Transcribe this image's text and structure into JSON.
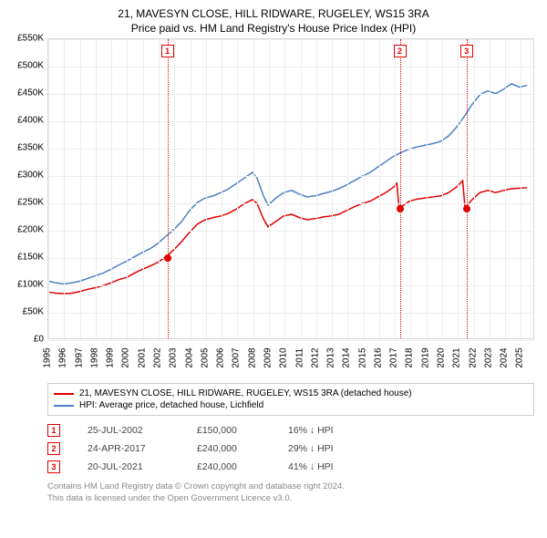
{
  "title_line1": "21, MAVESYN CLOSE, HILL RIDWARE, RUGELEY, WS15 3RA",
  "title_line2": "Price paid vs. HM Land Registry's House Price Index (HPI)",
  "chart": {
    "type": "line",
    "x_min": 1995,
    "x_max": 2025.9,
    "y_min": 0,
    "y_max": 550000,
    "y_step": 50000,
    "y_ticks": [
      "£0",
      "£50K",
      "£100K",
      "£150K",
      "£200K",
      "£250K",
      "£300K",
      "£350K",
      "£400K",
      "£450K",
      "£500K",
      "£550K"
    ],
    "x_ticks": [
      "1995",
      "1996",
      "1997",
      "1998",
      "1999",
      "2000",
      "2001",
      "2002",
      "2003",
      "2004",
      "2005",
      "2006",
      "2007",
      "2008",
      "2009",
      "2010",
      "2011",
      "2012",
      "2013",
      "2014",
      "2015",
      "2016",
      "2017",
      "2018",
      "2019",
      "2020",
      "2021",
      "2022",
      "2023",
      "2024",
      "2025"
    ],
    "grid_color": "#eeeeee",
    "border_color": "#d8d8d8",
    "background": "#ffffff",
    "series": {
      "property": {
        "color": "#e00000",
        "width": 1.5,
        "points": [
          [
            1995.0,
            85000
          ],
          [
            1995.5,
            83000
          ],
          [
            1996.0,
            82000
          ],
          [
            1996.5,
            83000
          ],
          [
            1997.0,
            86000
          ],
          [
            1997.5,
            90000
          ],
          [
            1998.0,
            93000
          ],
          [
            1998.5,
            97000
          ],
          [
            1999.0,
            102000
          ],
          [
            1999.5,
            108000
          ],
          [
            2000.0,
            112000
          ],
          [
            2000.5,
            120000
          ],
          [
            2001.0,
            127000
          ],
          [
            2001.5,
            133000
          ],
          [
            2002.0,
            140000
          ],
          [
            2002.5,
            150000
          ],
          [
            2003.0,
            163000
          ],
          [
            2003.5,
            178000
          ],
          [
            2004.0,
            195000
          ],
          [
            2004.5,
            210000
          ],
          [
            2005.0,
            218000
          ],
          [
            2005.5,
            222000
          ],
          [
            2006.0,
            225000
          ],
          [
            2006.5,
            230000
          ],
          [
            2007.0,
            238000
          ],
          [
            2007.5,
            248000
          ],
          [
            2008.0,
            255000
          ],
          [
            2008.3,
            248000
          ],
          [
            2008.7,
            220000
          ],
          [
            2009.0,
            205000
          ],
          [
            2009.5,
            215000
          ],
          [
            2010.0,
            225000
          ],
          [
            2010.5,
            228000
          ],
          [
            2011.0,
            222000
          ],
          [
            2011.5,
            218000
          ],
          [
            2012.0,
            220000
          ],
          [
            2012.5,
            223000
          ],
          [
            2013.0,
            225000
          ],
          [
            2013.5,
            228000
          ],
          [
            2014.0,
            235000
          ],
          [
            2014.5,
            242000
          ],
          [
            2015.0,
            248000
          ],
          [
            2015.5,
            252000
          ],
          [
            2016.0,
            260000
          ],
          [
            2016.5,
            268000
          ],
          [
            2017.0,
            278000
          ],
          [
            2017.2,
            285000
          ],
          [
            2017.35,
            240000
          ],
          [
            2017.8,
            248000
          ],
          [
            2018.0,
            252000
          ],
          [
            2018.5,
            256000
          ],
          [
            2019.0,
            258000
          ],
          [
            2019.5,
            260000
          ],
          [
            2020.0,
            262000
          ],
          [
            2020.5,
            268000
          ],
          [
            2021.0,
            278000
          ],
          [
            2021.4,
            290000
          ],
          [
            2021.55,
            240000
          ],
          [
            2022.0,
            255000
          ],
          [
            2022.5,
            268000
          ],
          [
            2023.0,
            272000
          ],
          [
            2023.5,
            268000
          ],
          [
            2024.0,
            272000
          ],
          [
            2024.5,
            275000
          ],
          [
            2025.0,
            276000
          ],
          [
            2025.5,
            277000
          ]
        ]
      },
      "hpi": {
        "color": "#4a7fc4",
        "width": 1.5,
        "points": [
          [
            1995.0,
            105000
          ],
          [
            1995.5,
            102000
          ],
          [
            1996.0,
            100000
          ],
          [
            1996.5,
            102000
          ],
          [
            1997.0,
            105000
          ],
          [
            1997.5,
            110000
          ],
          [
            1998.0,
            115000
          ],
          [
            1998.5,
            120000
          ],
          [
            1999.0,
            127000
          ],
          [
            1999.5,
            135000
          ],
          [
            2000.0,
            142000
          ],
          [
            2000.5,
            150000
          ],
          [
            2001.0,
            158000
          ],
          [
            2001.5,
            165000
          ],
          [
            2002.0,
            175000
          ],
          [
            2002.5,
            188000
          ],
          [
            2003.0,
            200000
          ],
          [
            2003.5,
            215000
          ],
          [
            2004.0,
            235000
          ],
          [
            2004.5,
            250000
          ],
          [
            2005.0,
            258000
          ],
          [
            2005.5,
            262000
          ],
          [
            2006.0,
            268000
          ],
          [
            2006.5,
            275000
          ],
          [
            2007.0,
            285000
          ],
          [
            2007.5,
            295000
          ],
          [
            2008.0,
            305000
          ],
          [
            2008.3,
            295000
          ],
          [
            2008.7,
            262000
          ],
          [
            2009.0,
            245000
          ],
          [
            2009.5,
            258000
          ],
          [
            2010.0,
            268000
          ],
          [
            2010.5,
            272000
          ],
          [
            2011.0,
            265000
          ],
          [
            2011.5,
            260000
          ],
          [
            2012.0,
            262000
          ],
          [
            2012.5,
            266000
          ],
          [
            2013.0,
            270000
          ],
          [
            2013.5,
            275000
          ],
          [
            2014.0,
            282000
          ],
          [
            2014.5,
            290000
          ],
          [
            2015.0,
            298000
          ],
          [
            2015.5,
            305000
          ],
          [
            2016.0,
            315000
          ],
          [
            2016.5,
            325000
          ],
          [
            2017.0,
            335000
          ],
          [
            2017.5,
            342000
          ],
          [
            2018.0,
            348000
          ],
          [
            2018.5,
            352000
          ],
          [
            2019.0,
            355000
          ],
          [
            2019.5,
            358000
          ],
          [
            2020.0,
            362000
          ],
          [
            2020.5,
            372000
          ],
          [
            2021.0,
            388000
          ],
          [
            2021.5,
            408000
          ],
          [
            2022.0,
            430000
          ],
          [
            2022.5,
            448000
          ],
          [
            2023.0,
            455000
          ],
          [
            2023.5,
            450000
          ],
          [
            2024.0,
            458000
          ],
          [
            2024.5,
            468000
          ],
          [
            2025.0,
            462000
          ],
          [
            2025.5,
            465000
          ]
        ]
      }
    },
    "sale_markers": [
      {
        "n": "1",
        "x": 2002.56,
        "y": 150000
      },
      {
        "n": "2",
        "x": 2017.31,
        "y": 240000
      },
      {
        "n": "3",
        "x": 2021.55,
        "y": 240000
      }
    ]
  },
  "legend": {
    "items": [
      {
        "color": "#e00000",
        "label": "21, MAVESYN CLOSE, HILL RIDWARE, RUGELEY, WS15 3RA (detached house)"
      },
      {
        "color": "#4a7fc4",
        "label": "HPI: Average price, detached house, Lichfield"
      }
    ]
  },
  "sales": [
    {
      "n": "1",
      "date": "25-JUL-2002",
      "price": "£150,000",
      "pct": "16% ↓ HPI"
    },
    {
      "n": "2",
      "date": "24-APR-2017",
      "price": "£240,000",
      "pct": "29% ↓ HPI"
    },
    {
      "n": "3",
      "date": "20-JUL-2021",
      "price": "£240,000",
      "pct": "41% ↓ HPI"
    }
  ],
  "footnote_line1": "Contains HM Land Registry data © Crown copyright and database right 2024.",
  "footnote_line2": "This data is licensed under the Open Government Licence v3.0."
}
